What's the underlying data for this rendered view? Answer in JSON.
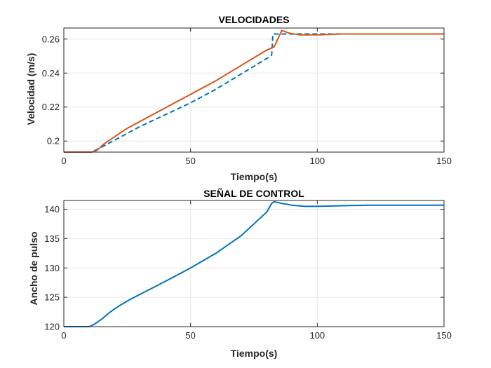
{
  "chart_data": [
    {
      "type": "line",
      "title": "VELOCIDADES",
      "xlabel": "Tiempo(s)",
      "ylabel": "Velocidad (m/s)",
      "xlim": [
        0,
        150
      ],
      "ylim": [
        0.1935,
        0.2665
      ],
      "xticks": [
        "0",
        "50",
        "100",
        "150"
      ],
      "yticks": [
        "0.2",
        "0.22",
        "0.24",
        "0.26"
      ],
      "grid": true,
      "legend": "none",
      "series": [
        {
          "style": "dashed",
          "color": "#0072BD",
          "points": [
            [
              0,
              0.1935
            ],
            [
              11,
              0.1935
            ],
            [
              15,
              0.1965
            ],
            [
              20,
              0.2005
            ],
            [
              30,
              0.2085
            ],
            [
              40,
              0.2155
            ],
            [
              50,
              0.2225
            ],
            [
              60,
              0.2305
            ],
            [
              70,
              0.2395
            ],
            [
              80,
              0.2485
            ],
            [
              82,
              0.2505
            ],
            [
              82.5,
              0.263
            ],
            [
              100,
              0.263
            ],
            [
              150,
              0.263
            ]
          ]
        },
        {
          "style": "solid",
          "color": "#D95319",
          "points": [
            [
              0,
              0.1935
            ],
            [
              11,
              0.1935
            ],
            [
              13,
              0.1945
            ],
            [
              16,
              0.1985
            ],
            [
              20,
              0.2025
            ],
            [
              25,
              0.2075
            ],
            [
              30,
              0.2115
            ],
            [
              40,
              0.2195
            ],
            [
              50,
              0.2275
            ],
            [
              60,
              0.2355
            ],
            [
              70,
              0.2445
            ],
            [
              80,
              0.2535
            ],
            [
              83,
              0.2555
            ],
            [
              86,
              0.265
            ],
            [
              89,
              0.2635
            ],
            [
              93,
              0.2625
            ],
            [
              100,
              0.2625
            ],
            [
              110,
              0.263
            ],
            [
              150,
              0.263
            ]
          ]
        }
      ]
    },
    {
      "type": "line",
      "title": "SEÑAL DE CONTROL",
      "xlabel": "Tiempo(s)",
      "ylabel": "Ancho de pulso",
      "xlim": [
        0,
        150
      ],
      "ylim": [
        120,
        141.5
      ],
      "xticks": [
        "0",
        "50",
        "100",
        "150"
      ],
      "yticks": [
        "120",
        "125",
        "130",
        "135",
        "140"
      ],
      "grid": true,
      "legend": "none",
      "series": [
        {
          "style": "solid",
          "color": "#0072BD",
          "points": [
            [
              0,
              120
            ],
            [
              10,
              120
            ],
            [
              12,
              120.4
            ],
            [
              15,
              121.3
            ],
            [
              18,
              122.4
            ],
            [
              22,
              123.6
            ],
            [
              26,
              124.6
            ],
            [
              30,
              125.5
            ],
            [
              40,
              127.7
            ],
            [
              50,
              130.0
            ],
            [
              60,
              132.5
            ],
            [
              70,
              135.5
            ],
            [
              80,
              139.5
            ],
            [
              82,
              141.0
            ],
            [
              83,
              141.3
            ],
            [
              86,
              141.0
            ],
            [
              90,
              140.7
            ],
            [
              95,
              140.5
            ],
            [
              100,
              140.5
            ],
            [
              110,
              140.6
            ],
            [
              120,
              140.7
            ],
            [
              150,
              140.7
            ]
          ]
        }
      ]
    }
  ]
}
